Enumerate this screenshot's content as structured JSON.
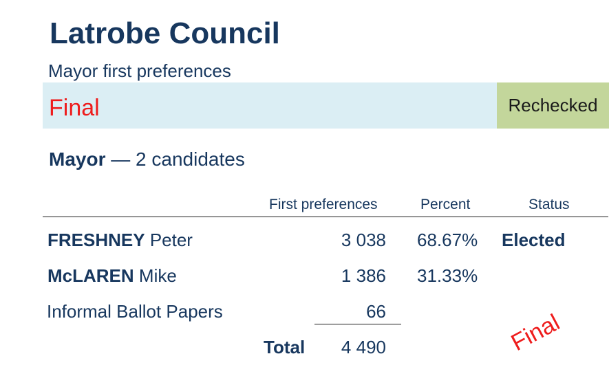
{
  "header": {
    "title": "Latrobe Council",
    "subtitle": "Mayor first preferences"
  },
  "banner": {
    "status": "Final",
    "badge": "Rechecked",
    "colors": {
      "bar": "#dbeef4",
      "badge": "#c3d69b",
      "status_text": "#ee1c1c"
    }
  },
  "section": {
    "office": "Mayor",
    "dash": "—",
    "count_text": "2 candidates"
  },
  "table": {
    "columns": {
      "first_preferences": "First preferences",
      "percent": "Percent",
      "status": "Status"
    },
    "rows": [
      {
        "surname": "FRESHNEY",
        "given": "Peter",
        "votes": "3 038",
        "percent": "68.67%",
        "status": "Elected"
      },
      {
        "surname": "McLAREN",
        "given": "Mike",
        "votes": "1 386",
        "percent": "31.33%",
        "status": ""
      }
    ],
    "informal": {
      "label": "Informal Ballot Papers",
      "votes": "66"
    },
    "total": {
      "label": "Total",
      "votes": "4 490"
    }
  },
  "stamp": {
    "text": "Final"
  },
  "colors": {
    "text": "#17375e"
  }
}
